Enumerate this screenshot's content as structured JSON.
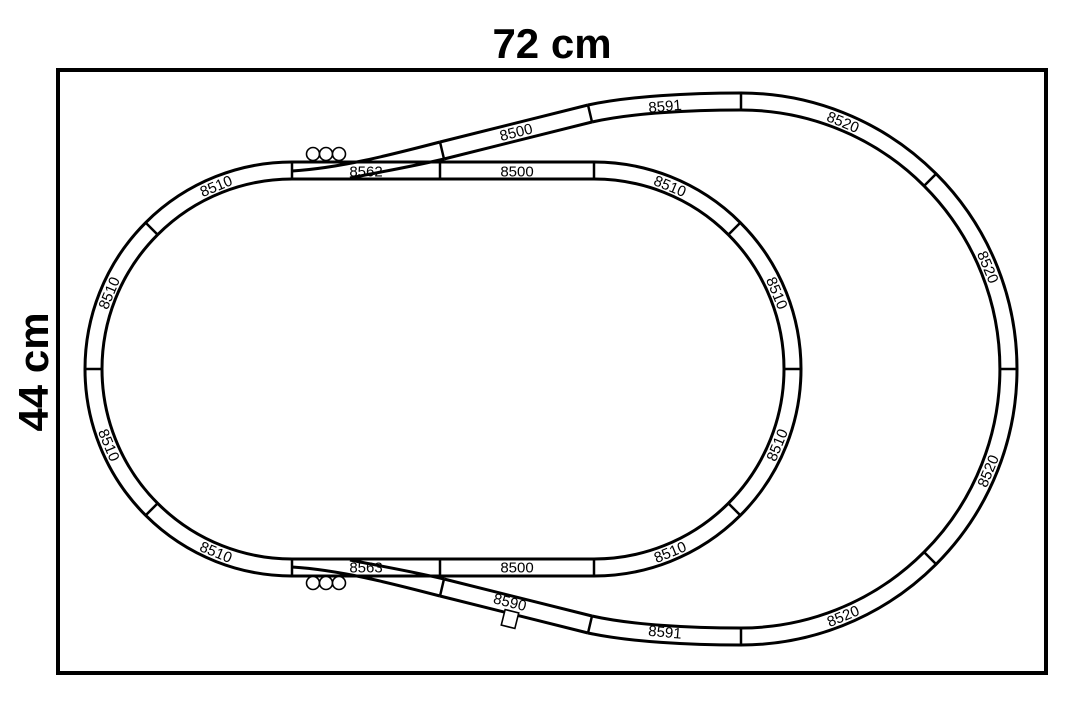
{
  "dimensions": {
    "width_label": "72 cm",
    "height_label": "44 cm"
  },
  "tracks": [
    {
      "part": "8510"
    },
    {
      "part": "8510"
    },
    {
      "part": "8510"
    },
    {
      "part": "8510"
    },
    {
      "part": "8562"
    },
    {
      "part": "8500"
    },
    {
      "part": "8510"
    },
    {
      "part": "8510"
    },
    {
      "part": "8510"
    },
    {
      "part": "8510"
    },
    {
      "part": "8563"
    },
    {
      "part": "8500"
    },
    {
      "part": "8500"
    },
    {
      "part": "8591"
    },
    {
      "part": "8520"
    },
    {
      "part": "8520"
    },
    {
      "part": "8520"
    },
    {
      "part": "8520"
    },
    {
      "part": "8591"
    },
    {
      "part": "8590"
    }
  ]
}
